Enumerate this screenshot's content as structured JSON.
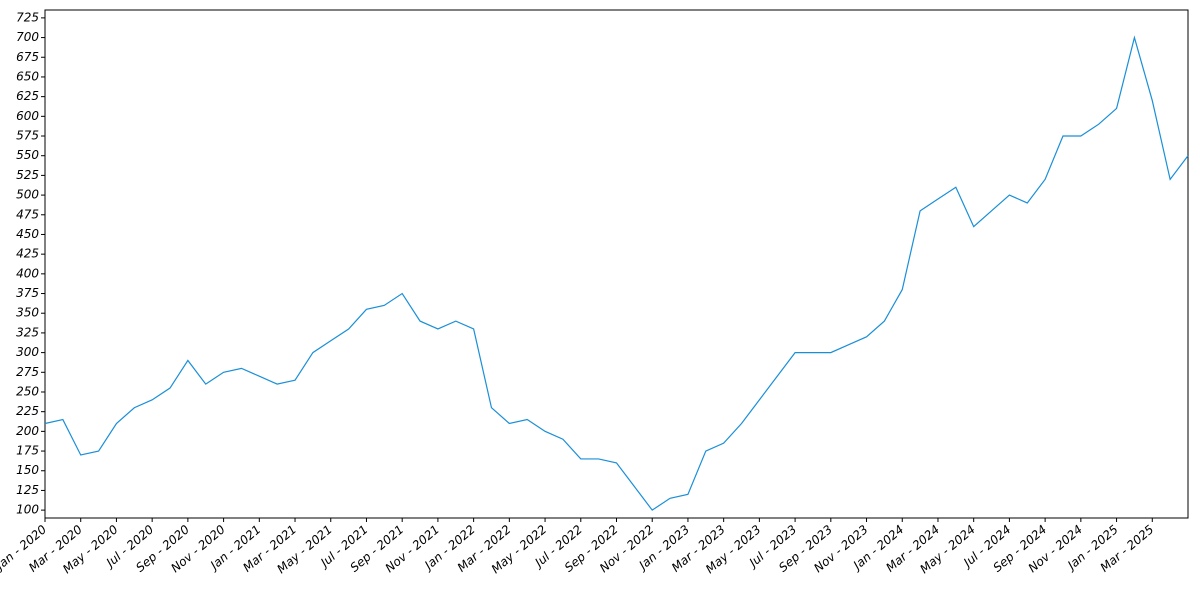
{
  "chart_data": {
    "type": "line",
    "x": [
      "2020-01",
      "2020-02",
      "2020-03",
      "2020-04",
      "2020-05",
      "2020-06",
      "2020-07",
      "2020-08",
      "2020-09",
      "2020-10",
      "2020-11",
      "2020-12",
      "2021-01",
      "2021-02",
      "2021-03",
      "2021-04",
      "2021-05",
      "2021-06",
      "2021-07",
      "2021-08",
      "2021-09",
      "2021-10",
      "2021-11",
      "2021-12",
      "2022-01",
      "2022-02",
      "2022-03",
      "2022-04",
      "2022-05",
      "2022-06",
      "2022-07",
      "2022-08",
      "2022-09",
      "2022-10",
      "2022-11",
      "2022-12",
      "2023-01",
      "2023-02",
      "2023-03",
      "2023-04",
      "2023-05",
      "2023-06",
      "2023-07",
      "2023-08",
      "2023-09",
      "2023-10",
      "2023-11",
      "2023-12",
      "2024-01",
      "2024-02",
      "2024-03",
      "2024-04",
      "2024-05",
      "2024-06",
      "2024-07",
      "2024-08",
      "2024-09",
      "2024-10",
      "2024-11",
      "2024-12",
      "2025-01",
      "2025-02",
      "2025-03",
      "2025-04",
      "2025-05"
    ],
    "series": [
      {
        "color": "#1a8fd8",
        "values": [
          210,
          215,
          170,
          175,
          210,
          230,
          240,
          255,
          290,
          260,
          275,
          280,
          270,
          260,
          265,
          300,
          315,
          330,
          355,
          360,
          375,
          340,
          330,
          340,
          330,
          230,
          210,
          215,
          200,
          190,
          165,
          165,
          160,
          130,
          100,
          115,
          120,
          175,
          185,
          210,
          240,
          270,
          300,
          300,
          300,
          310,
          320,
          340,
          380,
          480,
          495,
          510,
          460,
          480,
          500,
          490,
          520,
          575,
          575,
          590,
          610,
          700,
          620,
          520,
          550
        ]
      }
    ],
    "xlim": [
      "2020-01",
      "2025-05"
    ],
    "xticks": [
      {
        "value": "2020-01",
        "label": "Jan - 2020"
      },
      {
        "value": "2020-03",
        "label": "Mar - 2020"
      },
      {
        "value": "2020-05",
        "label": "May - 2020"
      },
      {
        "value": "2020-07",
        "label": "Jul - 2020"
      },
      {
        "value": "2020-09",
        "label": "Sep - 2020"
      },
      {
        "value": "2020-11",
        "label": "Nov - 2020"
      },
      {
        "value": "2021-01",
        "label": "Jan - 2021"
      },
      {
        "value": "2021-03",
        "label": "Mar - 2021"
      },
      {
        "value": "2021-05",
        "label": "May - 2021"
      },
      {
        "value": "2021-07",
        "label": "Jul - 2021"
      },
      {
        "value": "2021-09",
        "label": "Sep - 2021"
      },
      {
        "value": "2021-11",
        "label": "Nov - 2021"
      },
      {
        "value": "2022-01",
        "label": "Jan - 2022"
      },
      {
        "value": "2022-03",
        "label": "Mar - 2022"
      },
      {
        "value": "2022-05",
        "label": "May - 2022"
      },
      {
        "value": "2022-07",
        "label": "Jul - 2022"
      },
      {
        "value": "2022-09",
        "label": "Sep - 2022"
      },
      {
        "value": "2022-11",
        "label": "Nov - 2022"
      },
      {
        "value": "2023-01",
        "label": "Jan - 2023"
      },
      {
        "value": "2023-03",
        "label": "Mar - 2023"
      },
      {
        "value": "2023-05",
        "label": "May - 2023"
      },
      {
        "value": "2023-07",
        "label": "Jul - 2023"
      },
      {
        "value": "2023-09",
        "label": "Sep - 2023"
      },
      {
        "value": "2023-11",
        "label": "Nov - 2023"
      },
      {
        "value": "2024-01",
        "label": "Jan - 2024"
      },
      {
        "value": "2024-03",
        "label": "Mar - 2024"
      },
      {
        "value": "2024-05",
        "label": "May - 2024"
      },
      {
        "value": "2024-07",
        "label": "Jul - 2024"
      },
      {
        "value": "2024-09",
        "label": "Sep - 2024"
      },
      {
        "value": "2024-11",
        "label": "Nov - 2024"
      },
      {
        "value": "2025-01",
        "label": "Jan - 2025"
      },
      {
        "value": "2025-03",
        "label": "Mar - 2025"
      }
    ],
    "ylim": [
      90,
      735
    ],
    "yticks": [
      100,
      125,
      150,
      175,
      200,
      225,
      250,
      275,
      300,
      325,
      350,
      375,
      400,
      425,
      450,
      475,
      500,
      525,
      550,
      575,
      600,
      625,
      650,
      675,
      700,
      725
    ]
  }
}
